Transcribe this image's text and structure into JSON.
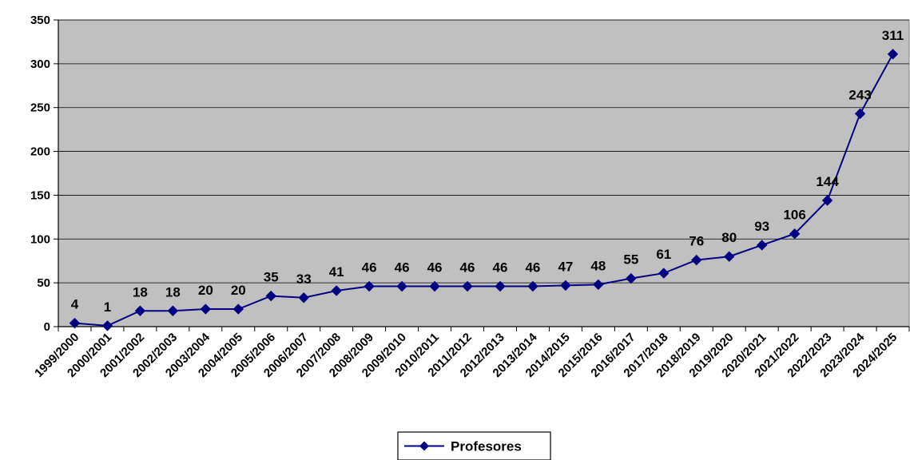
{
  "chart_data": {
    "type": "line",
    "categories": [
      "1999/2000",
      "2000/2001",
      "2001/2002",
      "2002/2003",
      "2003/2004",
      "2004/2005",
      "2005/2006",
      "2006/2007",
      "2007/2008",
      "2008/2009",
      "2009/2010",
      "2010/2011",
      "2011/2012",
      "2012/2013",
      "2013/2014",
      "2014/2015",
      "2015/2016",
      "2016/2017",
      "2017/2018",
      "2018/2019",
      "2019/2020",
      "2020/2021",
      "2021/2022",
      "2022/2023",
      "2023/2024",
      "2024/2025"
    ],
    "series": [
      {
        "name": "Profesores",
        "values": [
          4,
          1,
          18,
          18,
          20,
          20,
          35,
          33,
          41,
          46,
          46,
          46,
          46,
          46,
          46,
          47,
          48,
          55,
          61,
          76,
          80,
          93,
          106,
          144,
          243,
          311
        ]
      }
    ],
    "data_labels": [
      "4",
      "1",
      "18",
      "18",
      "20",
      "20",
      "35",
      "33",
      "41",
      "46",
      "46",
      "46",
      "46",
      "46",
      "46",
      "47",
      "48",
      "55",
      "61",
      "76",
      "80",
      "93",
      "106",
      "144",
      "243",
      "311"
    ],
    "ylim": [
      0,
      350
    ],
    "yticks": [
      0,
      50,
      100,
      150,
      200,
      250,
      300,
      350
    ],
    "grid": true,
    "legend_position": "bottom-center",
    "colors": {
      "series": "#000080",
      "plot_background": "#c0c0c0",
      "gridline": "#000000"
    },
    "marker": "diamond"
  }
}
